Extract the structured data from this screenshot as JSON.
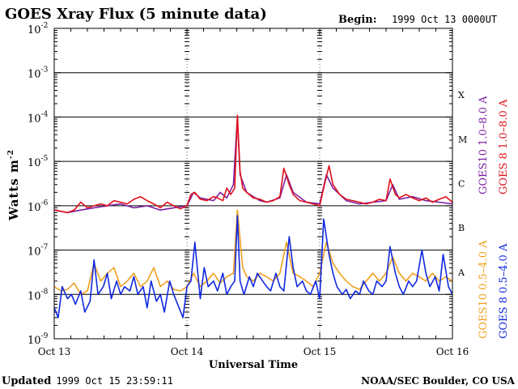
{
  "chart_data": {
    "type": "line",
    "title": "GOES Xray Flux (5 minute data)",
    "begin_label": "Begin:",
    "begin_value": "1999 Oct 13 0000UT",
    "xlabel": "Universal Time",
    "ylabel_main": "Watts m",
    "ylabel_exp": "-2",
    "y_scale": "log",
    "ylim": [
      1e-09,
      0.01
    ],
    "xlim": [
      0,
      3
    ],
    "x_ticks": [
      {
        "x": 0,
        "label": "Oct 13"
      },
      {
        "x": 1,
        "label": "Oct 14"
      },
      {
        "x": 2,
        "label": "Oct 15"
      },
      {
        "x": 3,
        "label": "Oct 16"
      }
    ],
    "y_ticks": [
      {
        "exp": -2,
        "base": "10",
        "sup": "-2"
      },
      {
        "exp": -3,
        "base": "10",
        "sup": "-3"
      },
      {
        "exp": -4,
        "base": "10",
        "sup": "-4"
      },
      {
        "exp": -5,
        "base": "10",
        "sup": "-5"
      },
      {
        "exp": -6,
        "base": "10",
        "sup": "-6"
      },
      {
        "exp": -7,
        "base": "10",
        "sup": "-7"
      },
      {
        "exp": -8,
        "base": "10",
        "sup": "-8"
      },
      {
        "exp": -9,
        "base": "10",
        "sup": "-9"
      }
    ],
    "gridlines_exp": [
      -3,
      -4,
      -5,
      -6,
      -7,
      -8
    ],
    "class_labels": [
      {
        "label": "X",
        "exp": -3.5
      },
      {
        "label": "M",
        "exp": -4.5
      },
      {
        "label": "C",
        "exp": -5.5
      },
      {
        "label": "B",
        "exp": -6.5
      },
      {
        "label": "A",
        "exp": -7.5
      }
    ],
    "series": [
      {
        "name": "GOES10 1.0–8.0 A",
        "color": "#7b1fa2",
        "x": [
          0,
          0.1,
          0.2,
          0.3,
          0.4,
          0.5,
          0.6,
          0.7,
          0.8,
          0.9,
          1.0,
          1.05,
          1.1,
          1.2,
          1.25,
          1.3,
          1.35,
          1.38,
          1.4,
          1.45,
          1.5,
          1.55,
          1.6,
          1.7,
          1.75,
          1.8,
          1.9,
          2.0,
          2.05,
          2.1,
          2.2,
          2.3,
          2.4,
          2.5,
          2.55,
          2.6,
          2.7,
          2.8,
          2.9,
          3.0
        ],
        "y": [
          8e-07,
          7e-07,
          8e-07,
          9e-07,
          1e-06,
          1.1e-06,
          9e-07,
          1e-06,
          8e-07,
          9e-07,
          1e-06,
          2e-06,
          1.5e-06,
          1.3e-06,
          2e-06,
          1.5e-06,
          3e-06,
          0.0001,
          5e-06,
          2e-06,
          1.6e-06,
          1.3e-06,
          1.2e-06,
          1.5e-06,
          5e-06,
          2e-06,
          1.2e-06,
          1.1e-06,
          5e-06,
          2.5e-06,
          1.3e-06,
          1.1e-06,
          1.2e-06,
          1.3e-06,
          3e-06,
          1.4e-06,
          1.6e-06,
          1.3e-06,
          1.2e-06,
          1.1e-06
        ]
      },
      {
        "name": "GOES 8 1.0–8.0 A",
        "color": "#e0101a",
        "x": [
          0,
          0.05,
          0.1,
          0.15,
          0.2,
          0.25,
          0.3,
          0.35,
          0.4,
          0.45,
          0.5,
          0.55,
          0.6,
          0.65,
          0.7,
          0.75,
          0.8,
          0.85,
          0.9,
          0.95,
          1.0,
          1.03,
          1.06,
          1.1,
          1.15,
          1.2,
          1.23,
          1.27,
          1.3,
          1.33,
          1.36,
          1.38,
          1.4,
          1.42,
          1.45,
          1.5,
          1.55,
          1.6,
          1.65,
          1.7,
          1.73,
          1.77,
          1.8,
          1.85,
          1.9,
          1.95,
          2.0,
          2.03,
          2.07,
          2.1,
          2.15,
          2.2,
          2.25,
          2.3,
          2.35,
          2.4,
          2.45,
          2.5,
          2.53,
          2.57,
          2.6,
          2.65,
          2.7,
          2.75,
          2.8,
          2.85,
          2.9,
          2.95,
          3.0
        ],
        "y": [
          8e-07,
          7.5e-07,
          7e-07,
          8e-07,
          1.2e-06,
          9e-07,
          1e-06,
          1.1e-06,
          1e-06,
          1.3e-06,
          1.2e-06,
          1.1e-06,
          1.4e-06,
          1.6e-06,
          1.3e-06,
          1.1e-06,
          9e-07,
          1.2e-06,
          1e-06,
          8.5e-07,
          1e-06,
          1.8e-06,
          2e-06,
          1.4e-06,
          1.3e-06,
          1.6e-06,
          1.5e-06,
          1.3e-06,
          2.5e-06,
          1.8e-06,
          2.5e-06,
          0.00011,
          6e-06,
          2.5e-06,
          2e-06,
          1.5e-06,
          1.4e-06,
          1.2e-06,
          1.3e-06,
          1.6e-06,
          7e-06,
          3e-06,
          1.8e-06,
          1.3e-06,
          1.2e-06,
          1.1e-06,
          1e-06,
          2.5e-06,
          8e-06,
          3e-06,
          1.8e-06,
          1.4e-06,
          1.3e-06,
          1.2e-06,
          1.1e-06,
          1.2e-06,
          1.4e-06,
          1.3e-06,
          4e-06,
          1.8e-06,
          1.5e-06,
          1.8e-06,
          1.5e-06,
          1.3e-06,
          1.5e-06,
          1.2e-06,
          1.4e-06,
          1.6e-06,
          1.2e-06
        ]
      },
      {
        "name": "GOES10 0.5–4.0 A",
        "color": "#f0a020",
        "x": [
          0,
          0.05,
          0.1,
          0.15,
          0.2,
          0.25,
          0.3,
          0.35,
          0.4,
          0.45,
          0.5,
          0.55,
          0.6,
          0.65,
          0.7,
          0.75,
          0.8,
          0.85,
          0.9,
          0.95,
          1.0,
          1.05,
          1.1,
          1.15,
          1.2,
          1.25,
          1.3,
          1.35,
          1.38,
          1.42,
          1.45,
          1.5,
          1.55,
          1.6,
          1.65,
          1.7,
          1.75,
          1.8,
          1.85,
          1.9,
          1.95,
          2.0,
          2.05,
          2.1,
          2.15,
          2.2,
          2.25,
          2.3,
          2.35,
          2.4,
          2.45,
          2.5,
          2.55,
          2.6,
          2.65,
          2.7,
          2.75,
          2.8,
          2.85,
          2.9,
          2.95,
          3.0
        ],
        "y": [
          1.5e-08,
          1.2e-08,
          1.3e-08,
          1.8e-08,
          1e-08,
          1.2e-08,
          5e-08,
          2e-08,
          3e-08,
          4e-08,
          1.5e-08,
          2e-08,
          3e-08,
          1.5e-08,
          2e-08,
          4e-08,
          1.5e-08,
          2e-08,
          1.3e-08,
          1.2e-08,
          1.5e-08,
          3e-08,
          1.5e-08,
          2e-08,
          3e-08,
          1.8e-08,
          2.5e-08,
          3e-08,
          8e-07,
          4e-08,
          2.5e-08,
          2e-08,
          3e-08,
          2.5e-08,
          2e-08,
          3e-08,
          1.5e-07,
          3e-08,
          2.5e-08,
          2e-08,
          1.5e-08,
          3e-08,
          1.5e-07,
          5e-08,
          3e-08,
          2e-08,
          1.5e-08,
          1.3e-08,
          2e-08,
          3e-08,
          2e-08,
          3e-08,
          7e-08,
          3e-08,
          2e-08,
          3e-08,
          2.5e-08,
          2e-08,
          3e-08,
          2e-08,
          2.5e-08,
          2e-08
        ]
      },
      {
        "name": "GOES 8 0.5–4.0 A",
        "color": "#1028e0",
        "x": [
          0,
          0.03,
          0.06,
          0.1,
          0.13,
          0.16,
          0.2,
          0.23,
          0.27,
          0.3,
          0.33,
          0.37,
          0.4,
          0.43,
          0.47,
          0.5,
          0.53,
          0.57,
          0.6,
          0.63,
          0.67,
          0.7,
          0.73,
          0.77,
          0.8,
          0.83,
          0.87,
          0.9,
          0.93,
          0.97,
          1.0,
          1.03,
          1.06,
          1.1,
          1.13,
          1.16,
          1.2,
          1.23,
          1.27,
          1.3,
          1.33,
          1.36,
          1.38,
          1.4,
          1.43,
          1.47,
          1.5,
          1.53,
          1.57,
          1.6,
          1.63,
          1.67,
          1.7,
          1.73,
          1.77,
          1.8,
          1.83,
          1.87,
          1.9,
          1.93,
          1.97,
          2.0,
          2.03,
          2.07,
          2.1,
          2.13,
          2.17,
          2.2,
          2.23,
          2.27,
          2.3,
          2.33,
          2.37,
          2.4,
          2.43,
          2.47,
          2.5,
          2.53,
          2.57,
          2.6,
          2.63,
          2.67,
          2.7,
          2.73,
          2.77,
          2.8,
          2.83,
          2.87,
          2.9,
          2.93,
          2.97,
          3.0
        ],
        "y": [
          5e-09,
          3e-09,
          1.5e-08,
          8e-09,
          1e-08,
          6e-09,
          1.2e-08,
          4e-09,
          7e-09,
          6e-08,
          1e-08,
          1.5e-08,
          3e-08,
          8e-09,
          2e-08,
          1e-08,
          1.5e-08,
          1.2e-08,
          2.5e-08,
          1e-08,
          1.5e-08,
          5e-09,
          2e-08,
          7e-09,
          1e-08,
          4e-09,
          2e-08,
          1e-08,
          6e-09,
          3e-09,
          1.5e-08,
          2e-08,
          1.5e-07,
          8e-09,
          4e-08,
          1.5e-08,
          2e-08,
          1.2e-08,
          3e-08,
          1e-08,
          1.5e-08,
          2e-08,
          6e-07,
          2e-08,
          1e-08,
          2.5e-08,
          1.5e-08,
          3e-08,
          2e-08,
          1.5e-08,
          1.2e-08,
          3e-08,
          1.5e-08,
          1.2e-08,
          2e-07,
          4e-08,
          1.5e-08,
          2e-08,
          1.2e-08,
          1e-08,
          2e-08,
          8e-09,
          5e-07,
          8e-08,
          3e-08,
          1.5e-08,
          1e-08,
          1.3e-08,
          8e-09,
          1.2e-08,
          1e-08,
          2e-08,
          1.2e-08,
          1e-08,
          2e-08,
          1.5e-08,
          2e-08,
          1.2e-07,
          3e-08,
          1.5e-08,
          1e-08,
          2e-08,
          1.5e-08,
          2e-08,
          1e-07,
          3e-08,
          1.5e-08,
          2.5e-08,
          1.2e-08,
          8e-08,
          1.5e-08,
          1e-08
        ]
      }
    ]
  },
  "footer": {
    "updated_label": "Updated",
    "updated_value": "1999 Oct 15 23:59:11",
    "credit": "NOAA/SEC Boulder, CO USA"
  },
  "colors": {
    "background": "#ffffff",
    "axis": "#000000",
    "goes10_long": "#7b1fa2",
    "goes8_long": "#e0101a",
    "goes10_short": "#f0a020",
    "goes8_short": "#1028e0"
  }
}
